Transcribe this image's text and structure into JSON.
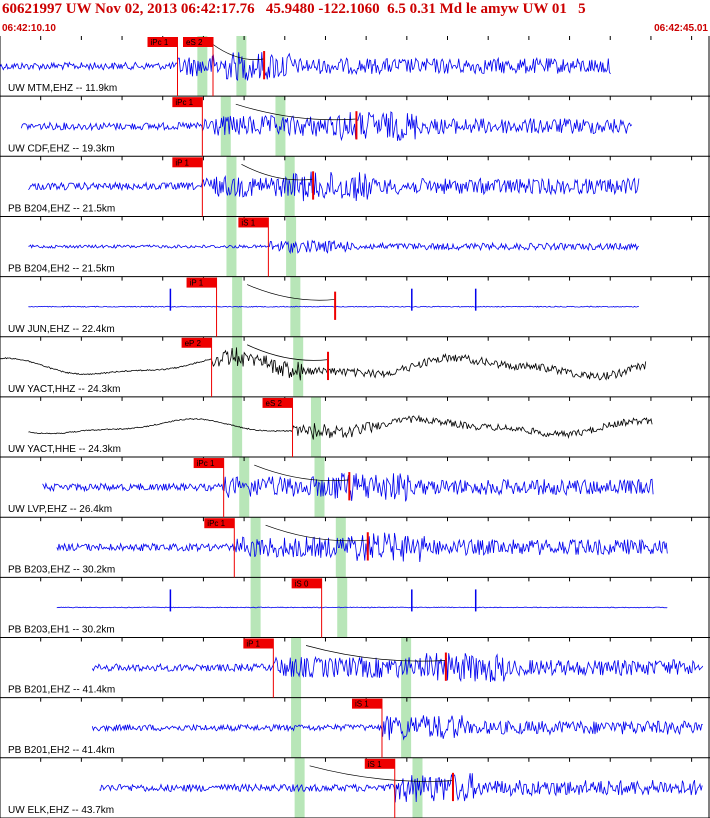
{
  "header": {
    "title": "60621997 UW Nov 02, 2013 06:42:17.76   45.9480 -122.1060  6.5 0.31 Md le amyw UW 01   5",
    "time_start": "06:42:10.10",
    "time_end": "06:42:45.01"
  },
  "colors": {
    "trace_blue": "#0000ee",
    "trace_black": "#000000",
    "pick_red": "#ee0000",
    "window_green": "#b8e6b8",
    "header_text": "#cc0000"
  },
  "traces": [
    {
      "label": "UW MTM,EHZ -- 11.9km",
      "color": "blue",
      "amp": 0.35,
      "start": 0.0,
      "end": 0.86,
      "spike": 0.05,
      "p_pick": {
        "label": "iPc 1",
        "t": 0.25
      },
      "s_pick": {
        "label": "eS 2",
        "t": 0.3
      },
      "p_win": 0.285,
      "s_win": 0.34,
      "coda_mark": 0.372
    },
    {
      "label": "UW CDF,EHZ -- 19.3km",
      "color": "blue",
      "amp": 0.35,
      "start": 0.03,
      "end": 0.89,
      "spike": 0.05,
      "p_pick": {
        "label": "iPc 1",
        "t": 0.285
      },
      "s_pick": null,
      "p_win": 0.318,
      "s_win": 0.395,
      "coda_mark": 0.502
    },
    {
      "label": "PB B204,EHZ -- 21.5km",
      "color": "blue",
      "amp": 0.35,
      "start": 0.04,
      "end": 0.9,
      "spike": 0.06,
      "p_pick": {
        "label": "iP 1",
        "t": 0.285
      },
      "s_pick": null,
      "p_win": 0.326,
      "s_win": 0.408,
      "coda_mark": 0.441
    },
    {
      "label": "PB B204,EH2 -- 21.5km",
      "color": "blue",
      "amp": 0.15,
      "start": 0.04,
      "end": 0.9,
      "spike": 0.06,
      "p_pick": null,
      "s_pick": {
        "label": "iS 1",
        "t": 0.378
      },
      "p_win": 0.326,
      "s_win": 0.41,
      "coda_mark": null
    },
    {
      "label": "UW JUN,EHZ -- 22.4km",
      "color": "blue",
      "amp": 0.06,
      "start": 0.04,
      "end": 0.9,
      "spike": 0.04,
      "p_pick": {
        "label": "iP 1",
        "t": 0.305
      },
      "s_pick": null,
      "p_win": 0.334,
      "s_win": 0.416,
      "coda_mark": 0.472
    },
    {
      "label": "UW YACT,HHZ -- 24.3km",
      "color": "black",
      "amp": 0.3,
      "start": 0.0,
      "end": 0.91,
      "spike": 0.0,
      "p_pick": {
        "label": "eP 2",
        "t": 0.298
      },
      "s_pick": null,
      "p_win": 0.334,
      "s_win": 0.42,
      "coda_mark": 0.462
    },
    {
      "label": "UW YACT,HHE -- 24.3km",
      "color": "black",
      "amp": 0.25,
      "start": 0.04,
      "end": 0.92,
      "spike": 0.0,
      "p_pick": null,
      "s_pick": {
        "label": "eS 2",
        "t": 0.412
      },
      "p_win": 0.334,
      "s_win": 0.445,
      "coda_mark": null
    },
    {
      "label": "UW LVP,EHZ -- 26.4km",
      "color": "blue",
      "amp": 0.35,
      "start": 0.06,
      "end": 0.92,
      "spike": 0.05,
      "p_pick": {
        "label": "iPc 1",
        "t": 0.315
      },
      "s_pick": null,
      "p_win": 0.344,
      "s_win": 0.45,
      "coda_mark": 0.492
    },
    {
      "label": "PB B203,EHZ -- 30.2km",
      "color": "blue",
      "amp": 0.35,
      "start": 0.08,
      "end": 0.94,
      "spike": 0.05,
      "p_pick": {
        "label": "iPc 1",
        "t": 0.33
      },
      "s_pick": null,
      "p_win": 0.36,
      "s_win": 0.48,
      "coda_mark": 0.518
    },
    {
      "label": "PB B203,EH1 -- 30.2km",
      "color": "blue",
      "amp": 0.05,
      "start": 0.08,
      "end": 0.94,
      "spike": 0.05,
      "p_pick": null,
      "s_pick": {
        "label": "iS 0",
        "t": 0.453
      },
      "p_win": 0.36,
      "s_win": 0.482,
      "coda_mark": null
    },
    {
      "label": "PB B201,EHZ -- 41.4km",
      "color": "blue",
      "amp": 0.35,
      "start": 0.13,
      "end": 0.99,
      "spike": 0.05,
      "p_pick": {
        "label": "iP 1",
        "t": 0.385
      },
      "s_pick": null,
      "p_win": 0.417,
      "s_win": 0.572,
      "coda_mark": 0.628
    },
    {
      "label": "PB B201,EH2 -- 41.4km",
      "color": "blue",
      "amp": 0.3,
      "start": 0.13,
      "end": 0.99,
      "spike": 0.05,
      "p_pick": null,
      "s_pick": {
        "label": "iS 1",
        "t": 0.538
      },
      "p_win": 0.417,
      "s_win": 0.572,
      "coda_mark": null
    },
    {
      "label": "UW ELK,EHZ -- 43.7km",
      "color": "blue",
      "amp": 0.35,
      "start": 0.14,
      "end": 0.99,
      "spike": 0.05,
      "p_pick": null,
      "s_pick": {
        "label": "iS 1",
        "t": 0.556
      },
      "p_win": 0.422,
      "s_win": 0.588,
      "coda_mark": 0.638
    }
  ]
}
